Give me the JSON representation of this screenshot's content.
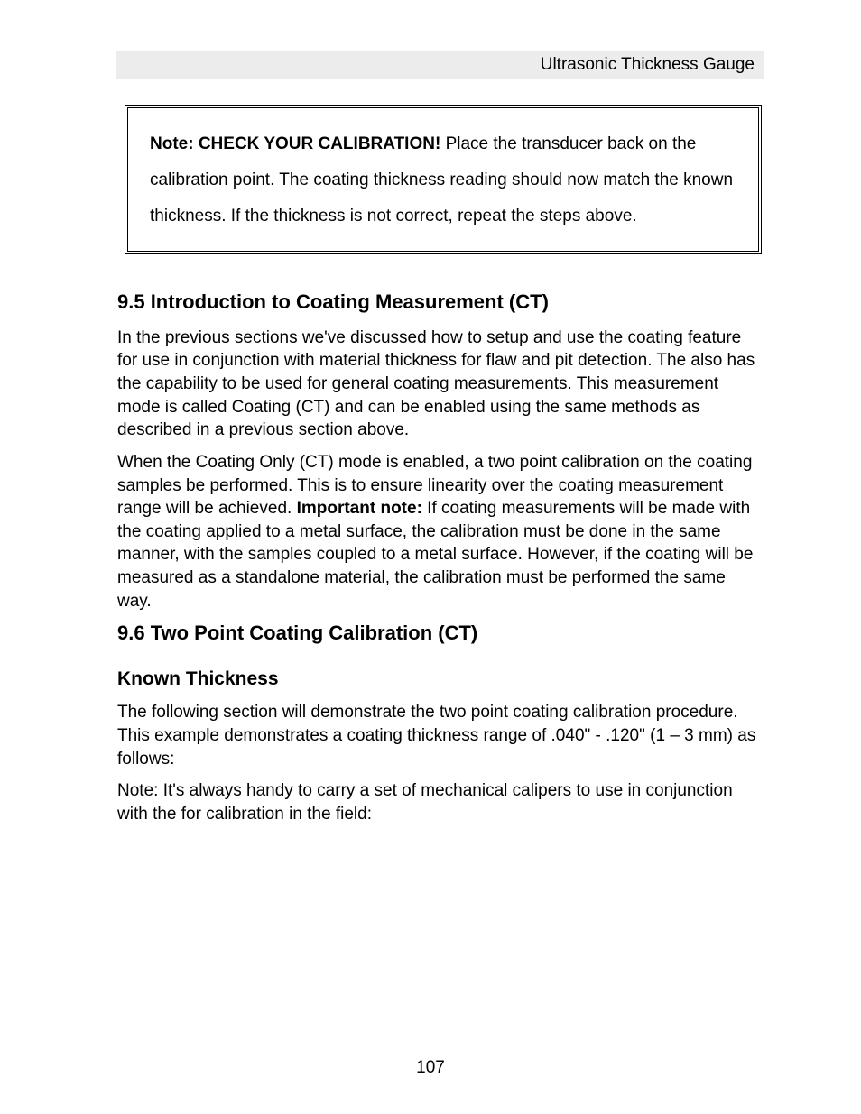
{
  "header": {
    "title": "Ultrasonic Thickness Gauge"
  },
  "note_box": {
    "bold_prefix": "Note:  CHECK YOUR CALIBRATION!",
    "text": "  Place the transducer back on the calibration point.  The coating thickness reading should now match the known thickness.  If the thickness is not correct, repeat the steps above."
  },
  "section95": {
    "heading": "9.5 Introduction to Coating Measurement (CT)",
    "para1": "In the previous sections we've discussed how to setup and use the coating feature for use in conjunction with material thickness for flaw and pit detection.  The also has the capability to be used for general coating measurements.  This measurement mode is called Coating (CT) and can be enabled using the same methods as described in a previous section above.",
    "para2_pre": "When the Coating Only (CT) mode is enabled, a two point calibration on the coating samples          be performed.  This is to ensure linearity over the coating measurement range will be achieved.  ",
    "para2_bold": "Important note:",
    "para2_post": "  If coating measurements will be made with the coating applied to a metal surface, the calibration must be done in the same manner, with the samples coupled to a metal surface.  However, if the coating will be measured as a standalone material, the calibration must be performed the same way."
  },
  "section96": {
    "heading": "9.6 Two Point Coating Calibration (CT)",
    "subheading": "Known Thickness",
    "para1": "The following section will demonstrate the two point coating calibration procedure.  This example demonstrates a coating thickness range of .040\" - .120\" (1 – 3 mm) as follows:",
    "para2": "Note:  It's always handy to carry a set of mechanical calipers to use in conjunction with the            for calibration in the field:"
  },
  "page_number": "107"
}
